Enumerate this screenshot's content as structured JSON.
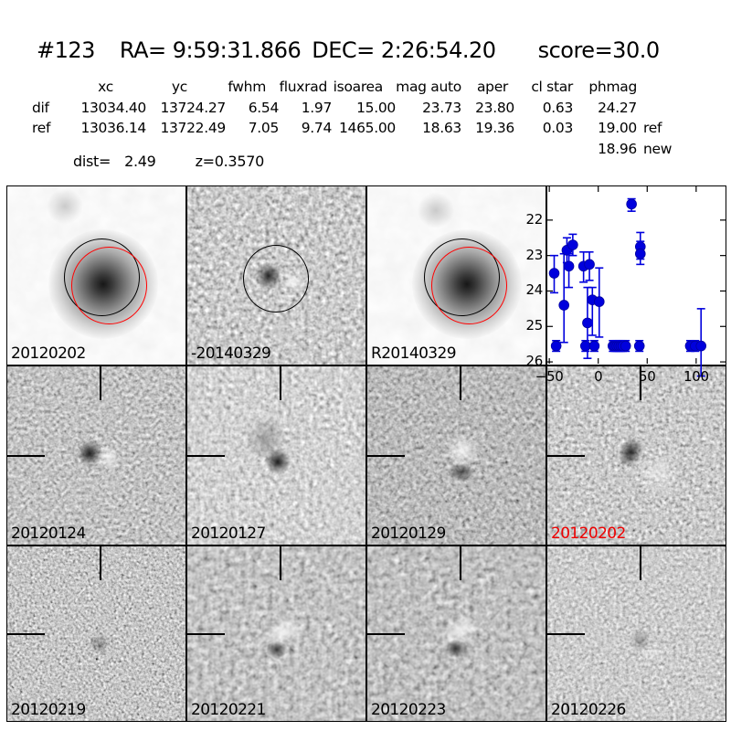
{
  "title": {
    "id": "#123",
    "ra": "RA= 9:59:31.866",
    "dec": "DEC= 2:26:54.20",
    "score": "score=30.0"
  },
  "measurements": {
    "columns": [
      "xc",
      "yc",
      "fwhm",
      "fluxrad",
      "isoarea",
      "mag auto",
      "aper",
      "cl star",
      "phmag"
    ],
    "rows": [
      {
        "label": "dif",
        "values": [
          "13034.40",
          "13724.27",
          "6.54",
          "1.97",
          "15.00",
          "23.73",
          "23.80",
          "0.63",
          "24.27"
        ],
        "suffix": ""
      },
      {
        "label": "ref",
        "values": [
          "13036.14",
          "13722.49",
          "7.05",
          "9.74",
          "1465.00",
          "18.63",
          "19.36",
          "0.03",
          "19.00"
        ],
        "suffix": "ref"
      }
    ],
    "phmag_new": {
      "value": "18.96",
      "suffix": "new"
    },
    "dist_label": "dist=",
    "dist_value": "2.49",
    "z_value": "z=0.3570"
  },
  "panels": [
    {
      "label": "20120202",
      "color": "#000000"
    },
    {
      "label": "-20140329",
      "color": "#000000"
    },
    {
      "label": "R20140329",
      "color": "#000000"
    },
    {
      "label": "20120124",
      "color": "#000000"
    },
    {
      "label": "20120127",
      "color": "#000000"
    },
    {
      "label": "20120129",
      "color": "#000000"
    },
    {
      "label": "20120202",
      "color": "#ee0000"
    },
    {
      "label": "20120219",
      "color": "#000000"
    },
    {
      "label": "20120221",
      "color": "#000000"
    },
    {
      "label": "20120223",
      "color": "#000000"
    },
    {
      "label": "20120226",
      "color": "#000000"
    }
  ],
  "chart_data": {
    "type": "scatter",
    "title": "",
    "xlabel": "",
    "ylabel": "",
    "xlim": [
      -52,
      130
    ],
    "ylim": [
      26.05,
      21.05
    ],
    "y_axis_inverted": true,
    "grid": false,
    "legend": null,
    "xticks": [
      -50,
      0,
      50,
      100
    ],
    "xtick_labels": [
      "−50",
      "0",
      "50",
      "100"
    ],
    "yticks": [
      22,
      23,
      24,
      25,
      26
    ],
    "ytick_labels": [
      "22",
      "23",
      "24",
      "25",
      "26"
    ],
    "marker": "o",
    "marker_color": "#0000dd",
    "points": [
      {
        "x": -45,
        "y": 23.5,
        "ylo": 24.05,
        "yhi": 23.0
      },
      {
        "x": -43,
        "y": 25.55,
        "ylo": 25.7,
        "yhi": 25.4
      },
      {
        "x": -35,
        "y": 24.4,
        "ylo": 25.45,
        "yhi": 22.95
      },
      {
        "x": -32,
        "y": 22.85,
        "ylo": 23.2,
        "yhi": 22.5
      },
      {
        "x": -30,
        "y": 23.3,
        "ylo": 23.9,
        "yhi": 22.95
      },
      {
        "x": -26,
        "y": 22.7,
        "ylo": 23.0,
        "yhi": 22.4
      },
      {
        "x": -15,
        "y": 23.3,
        "ylo": 23.75,
        "yhi": 22.9
      },
      {
        "x": -13,
        "y": 25.55,
        "ylo": 25.7,
        "yhi": 25.4
      },
      {
        "x": -11,
        "y": 24.9,
        "ylo": 25.9,
        "yhi": 23.9
      },
      {
        "x": -9,
        "y": 23.25,
        "ylo": 23.7,
        "yhi": 22.9
      },
      {
        "x": -6,
        "y": 24.25,
        "ylo": 25.25,
        "yhi": 23.9
      },
      {
        "x": -4,
        "y": 25.55,
        "ylo": 25.7,
        "yhi": 25.4
      },
      {
        "x": 1,
        "y": 24.3,
        "ylo": 25.3,
        "yhi": 23.35
      },
      {
        "x": 15,
        "y": 25.55,
        "ylo": 25.7,
        "yhi": 25.4
      },
      {
        "x": 17,
        "y": 25.55,
        "ylo": 25.7,
        "yhi": 25.4
      },
      {
        "x": 19,
        "y": 25.55,
        "ylo": 25.7,
        "yhi": 25.4
      },
      {
        "x": 21,
        "y": 25.55,
        "ylo": 25.7,
        "yhi": 25.4
      },
      {
        "x": 23,
        "y": 25.55,
        "ylo": 25.7,
        "yhi": 25.4
      },
      {
        "x": 25,
        "y": 25.55,
        "ylo": 25.7,
        "yhi": 25.4
      },
      {
        "x": 28,
        "y": 25.55,
        "ylo": 25.7,
        "yhi": 25.4
      },
      {
        "x": 34,
        "y": 21.55,
        "ylo": 21.75,
        "yhi": 21.4
      },
      {
        "x": 42,
        "y": 25.55,
        "ylo": 25.7,
        "yhi": 25.4
      },
      {
        "x": 43,
        "y": 22.75,
        "ylo": 23.1,
        "yhi": 22.35
      },
      {
        "x": 43,
        "y": 22.95,
        "ylo": 23.25,
        "yhi": 22.6
      },
      {
        "x": 94,
        "y": 25.55,
        "ylo": 25.7,
        "yhi": 25.4
      },
      {
        "x": 99,
        "y": 25.55,
        "ylo": 25.7,
        "yhi": 25.4
      },
      {
        "x": 105,
        "y": 25.55,
        "ylo": 26.4,
        "yhi": 24.5
      }
    ]
  }
}
